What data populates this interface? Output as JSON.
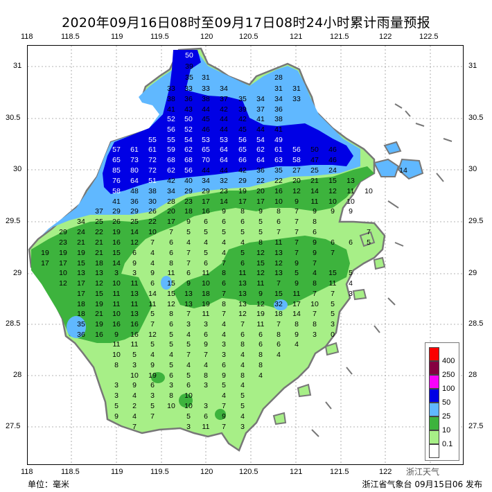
{
  "title": "2020年09月16日08时至09月17日08时24小时累计雨量预报",
  "lon_ticks": [
    "118",
    "118.5",
    "119",
    "119.5",
    "120",
    "120.5",
    "121",
    "121.5",
    "122",
    "122.5"
  ],
  "lat_ticks": [
    "31",
    "30.5",
    "30",
    "29.5",
    "29",
    "28.5",
    "28",
    "27.5"
  ],
  "footer": {
    "unit": "单位：毫米",
    "issuer": "浙江省气象台 09月15日06 发布"
  },
  "watermark": "浙江天气",
  "legend": {
    "items": [
      {
        "label": "400",
        "color": "#fb0000"
      },
      {
        "label": "250",
        "color": "#850041"
      },
      {
        "label": "100",
        "color": "#fa00fa"
      },
      {
        "label": "50",
        "color": "#0000e5"
      },
      {
        "label": "25",
        "color": "#60b8ff"
      },
      {
        "label": "10",
        "color": "#3db33d"
      },
      {
        "label": "0.1",
        "color": "#a7ef87"
      },
      {
        "label": "",
        "color": "#ffffff"
      }
    ]
  },
  "colors": {
    "land_light": "#a7ef87",
    "green": "#3db33d",
    "lightblue": "#60b8ff",
    "blue": "#0000e5",
    "border": "#777777"
  },
  "stations": [
    [
      "50",
      121,
      131
    ],
    [
      "39",
      121.25,
      131
    ],
    [
      "35",
      121.5,
      119
    ],
    [
      "31",
      121.75,
      119
    ],
    [
      "28",
      121.75,
      121
    ],
    [
      "38",
      122,
      119
    ],
    [
      "36",
      122,
      119.5
    ],
    [
      "38",
      122,
      120
    ],
    [
      "37",
      122,
      120.5
    ],
    [
      "35",
      122,
      120.75
    ],
    [
      "34",
      122,
      121
    ],
    [
      "33",
      122,
      121.25
    ],
    [
      "41",
      122.25,
      119.5
    ],
    [
      "43",
      122.25,
      119.75
    ],
    [
      "44",
      122.25,
      120
    ],
    [
      "42",
      122.25,
      120.25
    ],
    [
      "39",
      122.25,
      120.5
    ],
    [
      "37",
      122.25,
      120.75
    ],
    [
      "36",
      122.25,
      121
    ],
    [
      "55",
      122.75,
      119.5
    ],
    [
      "55",
      122.75,
      119.75
    ],
    [
      "54",
      122.75,
      120
    ],
    [
      "53",
      122.75,
      120.25
    ],
    [
      "53",
      122.75,
      120.5
    ],
    [
      "56",
      122.75,
      120.75
    ],
    [
      "57",
      123,
      119
    ],
    [
      "61",
      123,
      119.25
    ],
    [
      "61",
      123,
      119.5
    ],
    [
      "59",
      123,
      119.75
    ],
    [
      "62",
      123,
      120
    ],
    [
      "65",
      123,
      120.25
    ],
    [
      "64",
      123,
      120.5
    ],
    [
      "65",
      123,
      120.75
    ],
    [
      "62",
      123,
      121
    ],
    [
      "61",
      123,
      121.25
    ],
    [
      "56",
      123,
      121.5
    ],
    [
      "50",
      123,
      121.75
    ],
    [
      "46",
      123,
      122
    ]
  ]
}
